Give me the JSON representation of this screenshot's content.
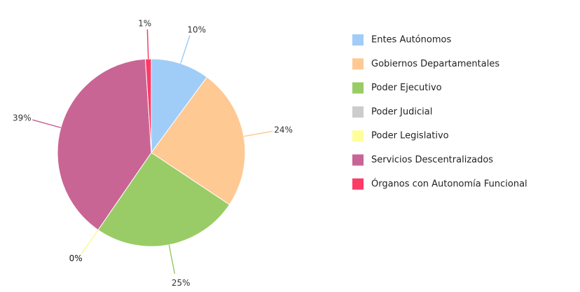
{
  "chart_data": {
    "type": "pie",
    "categories": [
      "Entes Autónomos",
      "Gobiernos Departamentales",
      "Poder Ejecutivo",
      "Poder Judicial",
      "Poder Legislativo",
      "Servicios Descentralizados",
      "Órganos con Autonomía Funcional"
    ],
    "values": [
      10,
      24,
      25,
      0,
      0,
      39,
      1
    ],
    "value_labels": [
      "10%",
      "24%",
      "25%",
      "0%",
      "0%",
      "39%",
      "1%"
    ],
    "colors": [
      "#9fcdf7",
      "#ffc993",
      "#99cc66",
      "#cccccc",
      "#ffff99",
      "#c96595",
      "#fc3b67"
    ],
    "legend": "right"
  }
}
